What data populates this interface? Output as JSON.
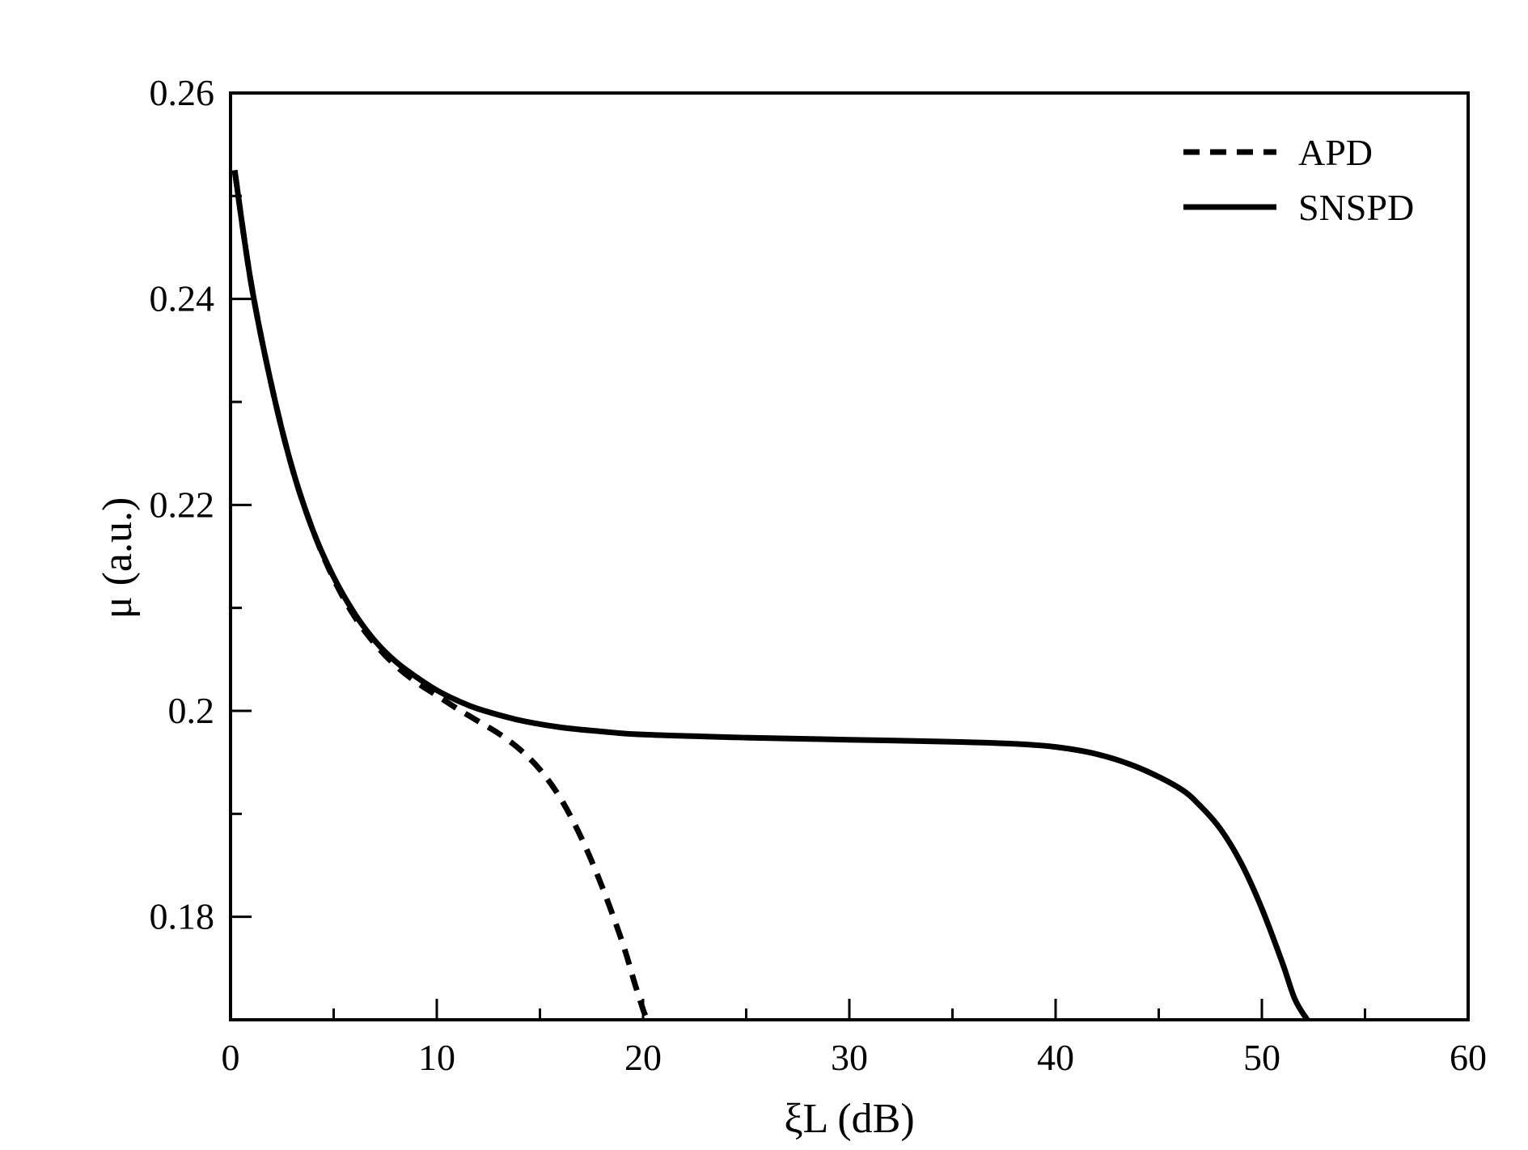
{
  "colors": {
    "background": "#ffffff",
    "ink": "#000000"
  },
  "chart_data": {
    "type": "line",
    "title": "",
    "xlabel": "ξL (dB)",
    "ylabel": "μ (a.u.)",
    "xlim": [
      0,
      60
    ],
    "ylim": [
      0.17,
      0.26
    ],
    "x_ticks": [
      {
        "value": 0,
        "label": "0"
      },
      {
        "value": 10,
        "label": "10"
      },
      {
        "value": 20,
        "label": "20"
      },
      {
        "value": 30,
        "label": "30"
      },
      {
        "value": 40,
        "label": "40"
      },
      {
        "value": 50,
        "label": "50"
      },
      {
        "value": 60,
        "label": "60"
      }
    ],
    "x_minor_ticks": [
      5,
      15,
      25,
      35,
      45,
      55
    ],
    "y_ticks": [
      {
        "value": 0.18,
        "label": "0.18"
      },
      {
        "value": 0.2,
        "label": "0.2"
      },
      {
        "value": 0.22,
        "label": "0.22"
      },
      {
        "value": 0.24,
        "label": "0.24"
      },
      {
        "value": 0.26,
        "label": "0.26"
      }
    ],
    "y_minor_ticks": [
      0.19,
      0.21,
      0.23,
      0.25
    ],
    "grid": false,
    "legend_position": "top-right",
    "series": [
      {
        "name": "APD",
        "style": "dashed",
        "x": [
          0.2,
          1,
          2,
          3,
          4,
          5,
          6,
          7,
          8,
          9,
          10,
          11,
          12,
          13,
          14,
          15,
          16,
          17,
          18,
          19,
          19.6,
          20.0,
          20.2
        ],
        "y": [
          0.2525,
          0.2415,
          0.2315,
          0.2235,
          0.2175,
          0.2128,
          0.2092,
          0.2065,
          0.2044,
          0.2028,
          0.2015,
          0.2002,
          0.199,
          0.1978,
          0.1963,
          0.1943,
          0.1915,
          0.1877,
          0.183,
          0.1775,
          0.1735,
          0.171,
          0.17
        ]
      },
      {
        "name": "SNSPD",
        "style": "solid",
        "x": [
          0.2,
          1,
          2,
          3,
          4,
          5,
          6,
          7,
          8,
          9,
          10,
          11,
          12,
          14,
          16,
          18,
          20,
          25,
          30,
          35,
          38,
          40,
          42,
          44,
          46,
          47,
          48,
          49,
          50,
          51,
          51.6,
          52.2
        ],
        "y": [
          0.2525,
          0.2415,
          0.2315,
          0.2235,
          0.2175,
          0.213,
          0.2095,
          0.2068,
          0.2048,
          0.2033,
          0.202,
          0.201,
          0.2002,
          0.1991,
          0.1984,
          0.198,
          0.1977,
          0.1974,
          0.1972,
          0.197,
          0.1968,
          0.1965,
          0.1958,
          0.1945,
          0.1925,
          0.1908,
          0.1885,
          0.1852,
          0.1808,
          0.1755,
          0.172,
          0.17
        ]
      }
    ]
  }
}
